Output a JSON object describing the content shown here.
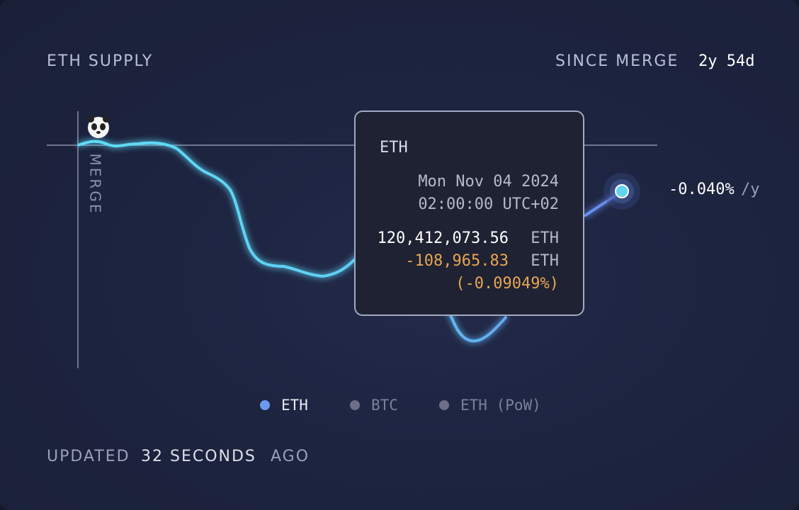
{
  "header": {
    "title": "ETH SUPPLY",
    "period_label": "SINCE MERGE",
    "period_value": "2y 54d"
  },
  "chart": {
    "marker_label": "MERGE",
    "rate": "-0.040%",
    "rate_unit": "/y"
  },
  "tooltip": {
    "series": "ETH",
    "date": "Mon Nov 04 2024",
    "time": "02:00:00 UTC+02",
    "supply": "120,412,073.56",
    "supply_unit": "ETH",
    "change": "-108,965.83",
    "change_unit": "ETH",
    "change_pct": "(-0.09049%)"
  },
  "legend": [
    "ETH",
    "BTC",
    "ETH (PoW)"
  ],
  "footer": {
    "prefix": "UPDATED",
    "age": "32 SECONDS",
    "suffix": "AGO"
  }
}
